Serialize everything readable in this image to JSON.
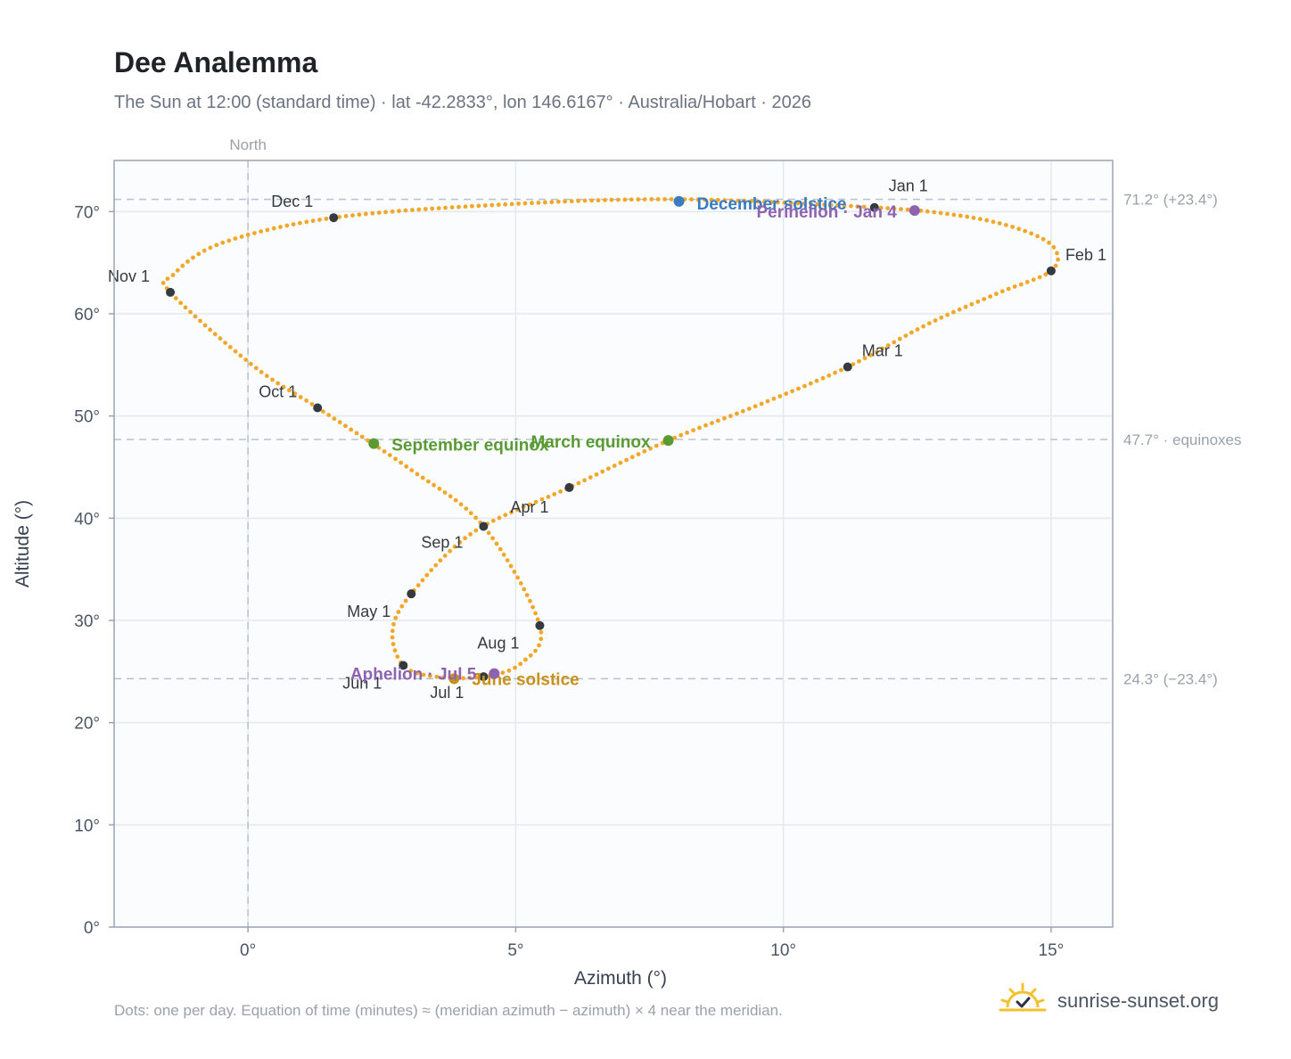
{
  "header": {
    "title": "Dee Analemma",
    "subtitle": "The Sun at 12:00 (standard time) · lat -42.2833°, lon 146.6167° · Australia/Hobart · 2026"
  },
  "footer": {
    "note": "Dots: one per day. Equation of time (minutes) ≈ (meridian azimuth − azimuth) × 4 near the meridian.",
    "brand": "sunrise-sunset.org"
  },
  "chart_data": {
    "type": "scatter",
    "title": "Dee Analemma",
    "subtitle": "The Sun at 12:00 (standard time) · lat -42.2833°, lon 146.6167° · Australia/Hobart · 2026",
    "xlabel": "Azimuth (°)",
    "ylabel": "Altitude (°)",
    "xlim": [
      -2.5,
      16.15
    ],
    "ylim": [
      0,
      75
    ],
    "xticks": [
      0,
      5,
      10,
      15
    ],
    "xtick_labels": [
      "0°",
      "5°",
      "10°",
      "15°"
    ],
    "yticks": [
      0,
      10,
      20,
      30,
      40,
      50,
      60,
      70
    ],
    "ytick_labels": [
      "0°",
      "10°",
      "20°",
      "30°",
      "40°",
      "50°",
      "60°",
      "70°"
    ],
    "grid": true,
    "colors": {
      "path": "#f2a72a",
      "month": "#343a40",
      "december_solstice": "#3b7bbf",
      "june_solstice": "#c8921a",
      "equinox": "#5a9a35",
      "perihelion_aphelion": "#8e63b0",
      "reference_line": "#b9c1cc",
      "plot_background": "#fafcfe",
      "plot_border": "#9aa4b2"
    },
    "vertical_reference": {
      "x": 0,
      "label": "North"
    },
    "horizontal_references": [
      {
        "y": 71.2,
        "label": "71.2° (+23.4°)"
      },
      {
        "y": 47.7,
        "label": "47.7° · equinoxes"
      },
      {
        "y": 24.3,
        "label": "24.3° (−23.4°)"
      }
    ],
    "analemma_path": [
      [
        11.7,
        70.4
      ],
      [
        13.3,
        69.6
      ],
      [
        14.4,
        68.3
      ],
      [
        15.05,
        66.5
      ],
      [
        15.0,
        64.2
      ],
      [
        14.0,
        62.0
      ],
      [
        12.7,
        59.0
      ],
      [
        11.2,
        54.8
      ],
      [
        9.5,
        51.0
      ],
      [
        7.85,
        47.6
      ],
      [
        6.0,
        43.0
      ],
      [
        4.2,
        38.6
      ],
      [
        3.05,
        32.6
      ],
      [
        2.7,
        29.0
      ],
      [
        2.9,
        25.6
      ],
      [
        3.5,
        24.5
      ],
      [
        4.4,
        24.5
      ],
      [
        5.1,
        25.8
      ],
      [
        5.45,
        29.5
      ],
      [
        4.4,
        39.2
      ],
      [
        3.0,
        44.9
      ],
      [
        1.3,
        50.8
      ],
      [
        0.1,
        54.9
      ],
      [
        -1.45,
        62.1
      ],
      [
        -1.4,
        63.8
      ],
      [
        -0.5,
        66.9
      ],
      [
        1.6,
        69.4
      ],
      [
        4.8,
        70.7
      ],
      [
        8.05,
        71.2
      ],
      [
        11.7,
        70.4
      ]
    ],
    "months": [
      {
        "label": "Jan 1",
        "x": 11.7,
        "y": 70.4
      },
      {
        "label": "Feb 1",
        "x": 15.0,
        "y": 64.2
      },
      {
        "label": "Mar 1",
        "x": 11.2,
        "y": 54.8
      },
      {
        "label": "Apr 1",
        "x": 6.0,
        "y": 43.0
      },
      {
        "label": "May 1",
        "x": 3.05,
        "y": 32.6
      },
      {
        "label": "Jun 1",
        "x": 2.9,
        "y": 25.6
      },
      {
        "label": "Jul 1",
        "x": 4.4,
        "y": 24.5
      },
      {
        "label": "Aug 1",
        "x": 5.45,
        "y": 29.5
      },
      {
        "label": "Sep 1",
        "x": 4.4,
        "y": 39.2
      },
      {
        "label": "Oct 1",
        "x": 1.3,
        "y": 50.8
      },
      {
        "label": "Nov 1",
        "x": -1.45,
        "y": 62.1
      },
      {
        "label": "Dec 1",
        "x": 1.6,
        "y": 69.4
      }
    ],
    "events": [
      {
        "label": "December solstice",
        "x": 8.05,
        "y": 71.0,
        "kind": "december_solstice"
      },
      {
        "label": "Perihelion · Jan 4",
        "x": 12.45,
        "y": 70.1,
        "kind": "perihelion_aphelion"
      },
      {
        "label": "March equinox",
        "x": 7.85,
        "y": 47.6,
        "kind": "equinox"
      },
      {
        "label": "September equinox",
        "x": 2.35,
        "y": 47.3,
        "kind": "equinox"
      },
      {
        "label": "June solstice",
        "x": 3.85,
        "y": 24.3,
        "kind": "june_solstice"
      },
      {
        "label": "Aphelion · Jul 5",
        "x": 4.6,
        "y": 24.8,
        "kind": "perihelion_aphelion"
      }
    ]
  }
}
